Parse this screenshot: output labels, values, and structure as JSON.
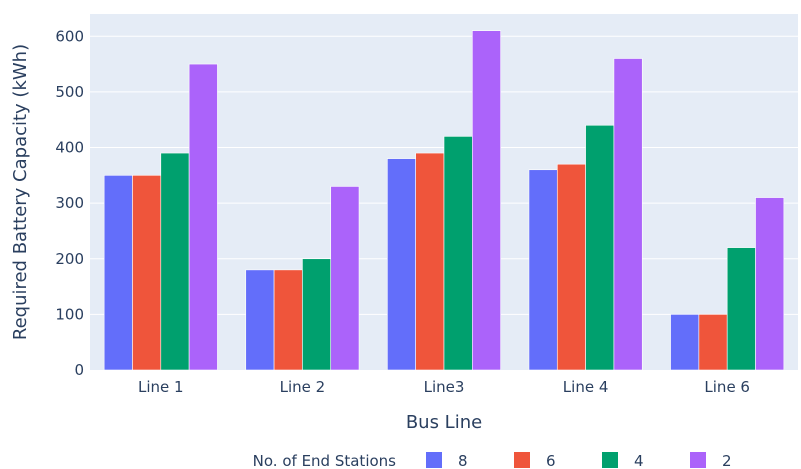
{
  "chart_data": {
    "type": "bar",
    "title": "",
    "xlabel": "Bus Line",
    "ylabel": "Required Battery Capacity (kWh)",
    "categories": [
      "Line 1",
      "Line 2",
      "Line3",
      "Line 4",
      "Line 6"
    ],
    "series": [
      {
        "name": "8",
        "color": "#636efa",
        "values": [
          350,
          180,
          380,
          360,
          100
        ]
      },
      {
        "name": "6",
        "color": "#ef553b",
        "values": [
          350,
          180,
          390,
          370,
          100
        ]
      },
      {
        "name": "4",
        "color": "#00a06e",
        "values": [
          390,
          200,
          420,
          440,
          220
        ]
      },
      {
        "name": "2",
        "color": "#ab63fa",
        "values": [
          550,
          330,
          610,
          560,
          310
        ]
      }
    ],
    "ylim": [
      0,
      640
    ],
    "yticks": [
      0,
      100,
      200,
      300,
      400,
      500,
      600
    ],
    "grid": true,
    "plot_background": "#e5ecf6",
    "legend": {
      "title": "No. of End Stations",
      "placement": "bottom"
    }
  }
}
